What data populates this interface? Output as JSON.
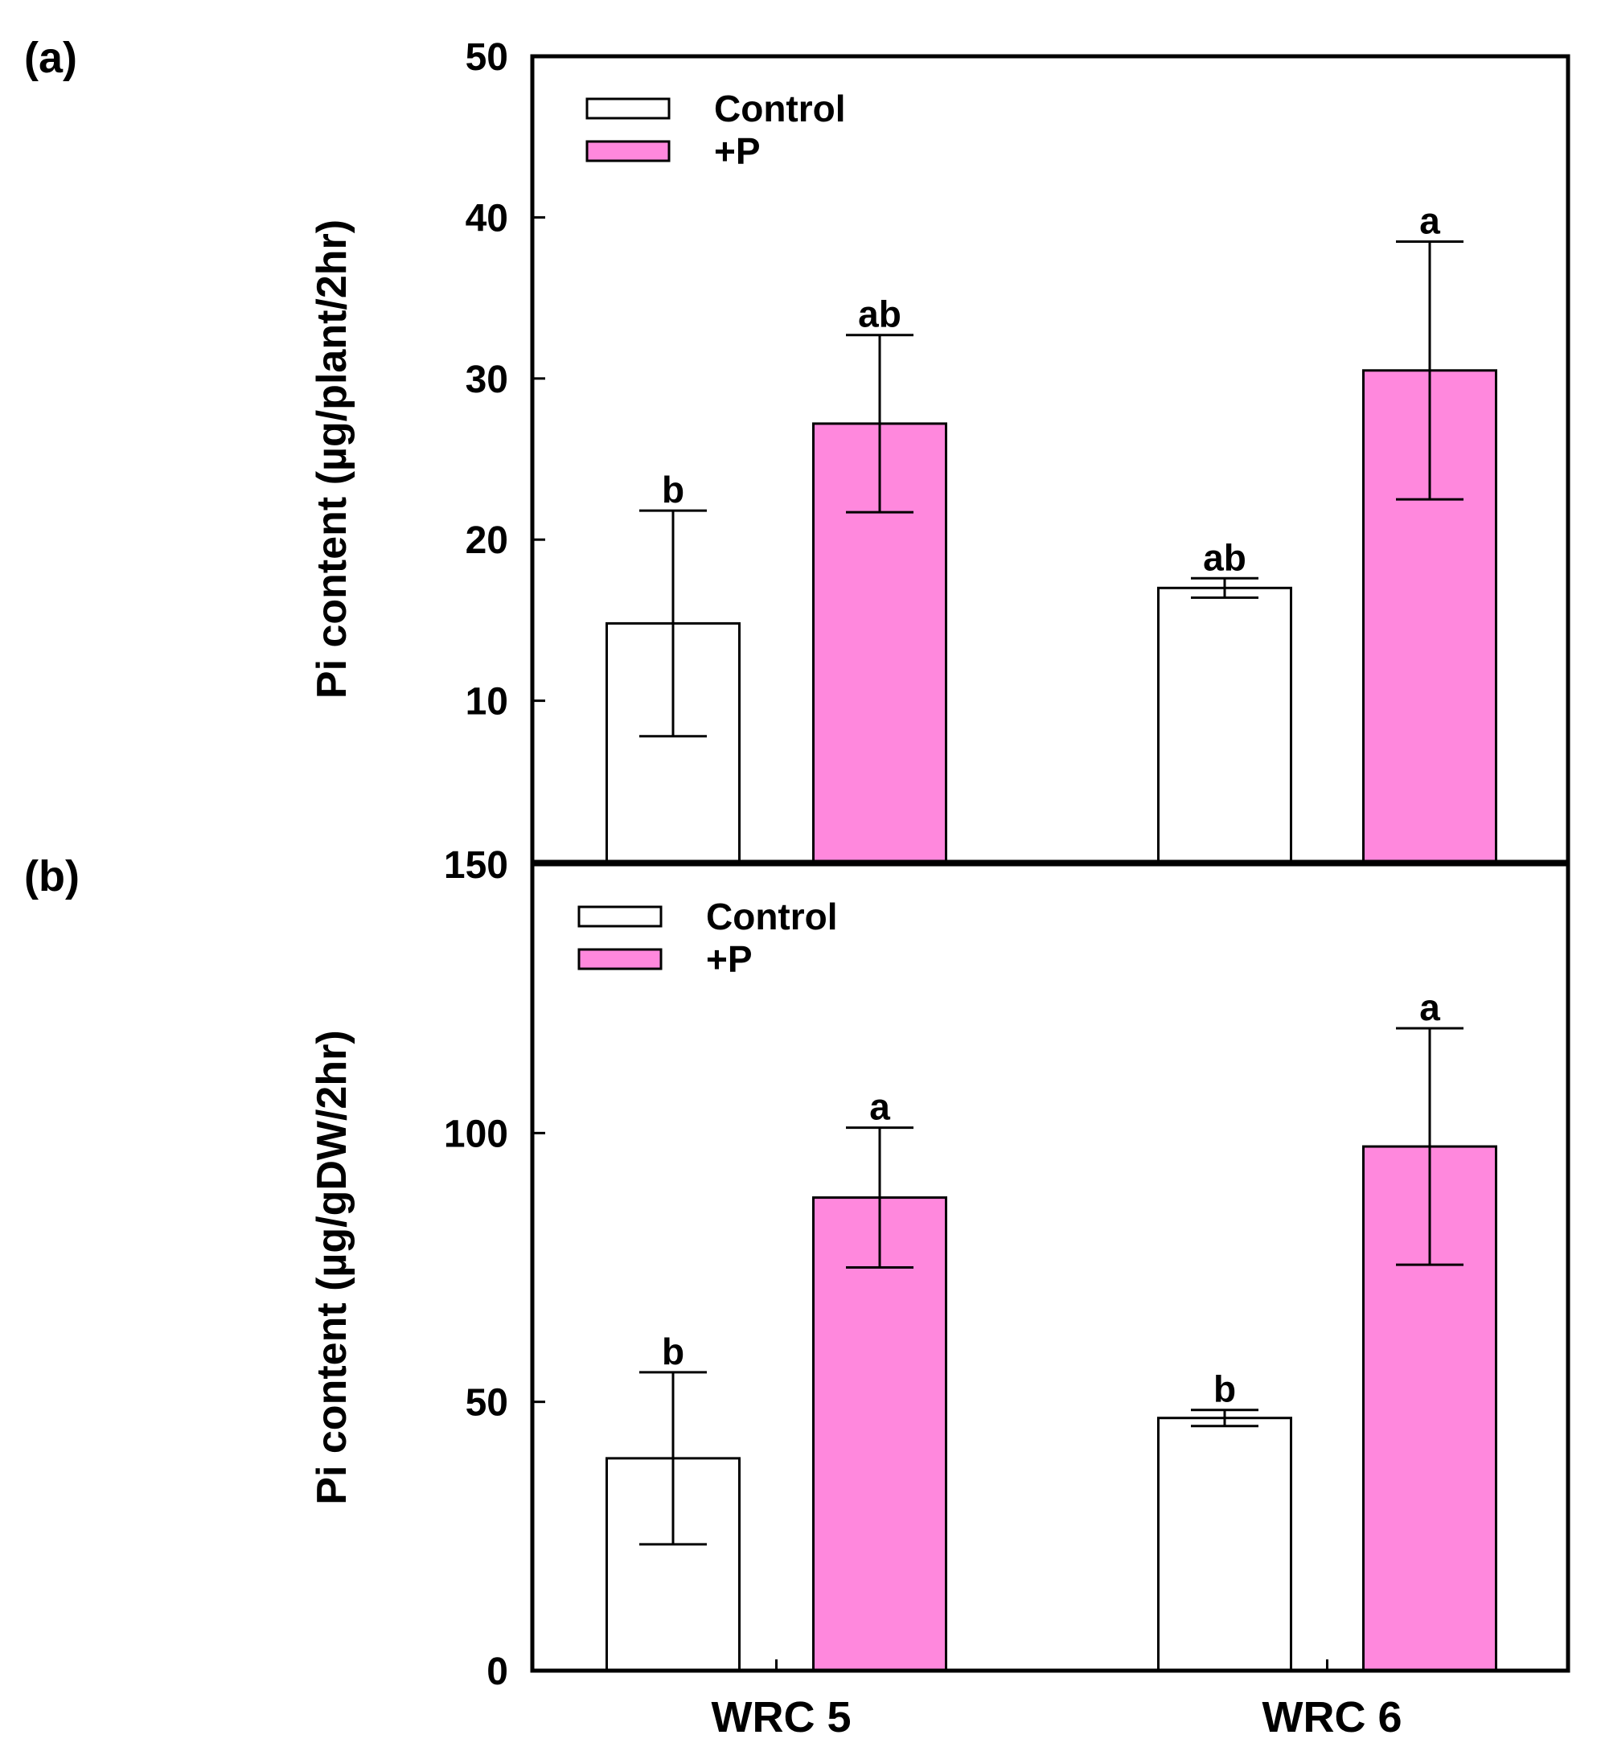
{
  "chart_data": [
    {
      "panel_label": "(a)",
      "type": "bar",
      "ylabel": "Pi content (µg/plant/2hr)",
      "ylim": [
        0,
        50
      ],
      "yticks": [
        10,
        20,
        30,
        40,
        50
      ],
      "categories": [
        "WRC 5",
        "WRC 6"
      ],
      "legend_position": "top-left",
      "series": [
        {
          "name": "Control",
          "color": "#ffffff",
          "values": [
            14.8,
            17.0
          ],
          "errors": [
            7.0,
            0.6
          ],
          "significance": [
            "b",
            "ab"
          ]
        },
        {
          "name": "+P",
          "color": "#ff88dd",
          "values": [
            27.2,
            30.5
          ],
          "errors": [
            5.5,
            8.0
          ],
          "significance": [
            "ab",
            "a"
          ]
        }
      ]
    },
    {
      "panel_label": "(b)",
      "type": "bar",
      "ylabel": "Pi content (µg/gDW/2hr)",
      "ylim": [
        0,
        150
      ],
      "yticks": [
        0,
        50,
        100,
        150
      ],
      "categories": [
        "WRC 5",
        "WRC 6"
      ],
      "xlabel_categories_shown": true,
      "legend_position": "top-left",
      "series": [
        {
          "name": "Control",
          "color": "#ffffff",
          "values": [
            39.5,
            47.0
          ],
          "errors": [
            16.0,
            1.5
          ],
          "significance": [
            "b",
            "b"
          ]
        },
        {
          "name": "+P",
          "color": "#ff88dd",
          "values": [
            88.0,
            97.5
          ],
          "errors": [
            13.0,
            22.0
          ],
          "significance": [
            "a",
            "a"
          ]
        }
      ]
    }
  ]
}
